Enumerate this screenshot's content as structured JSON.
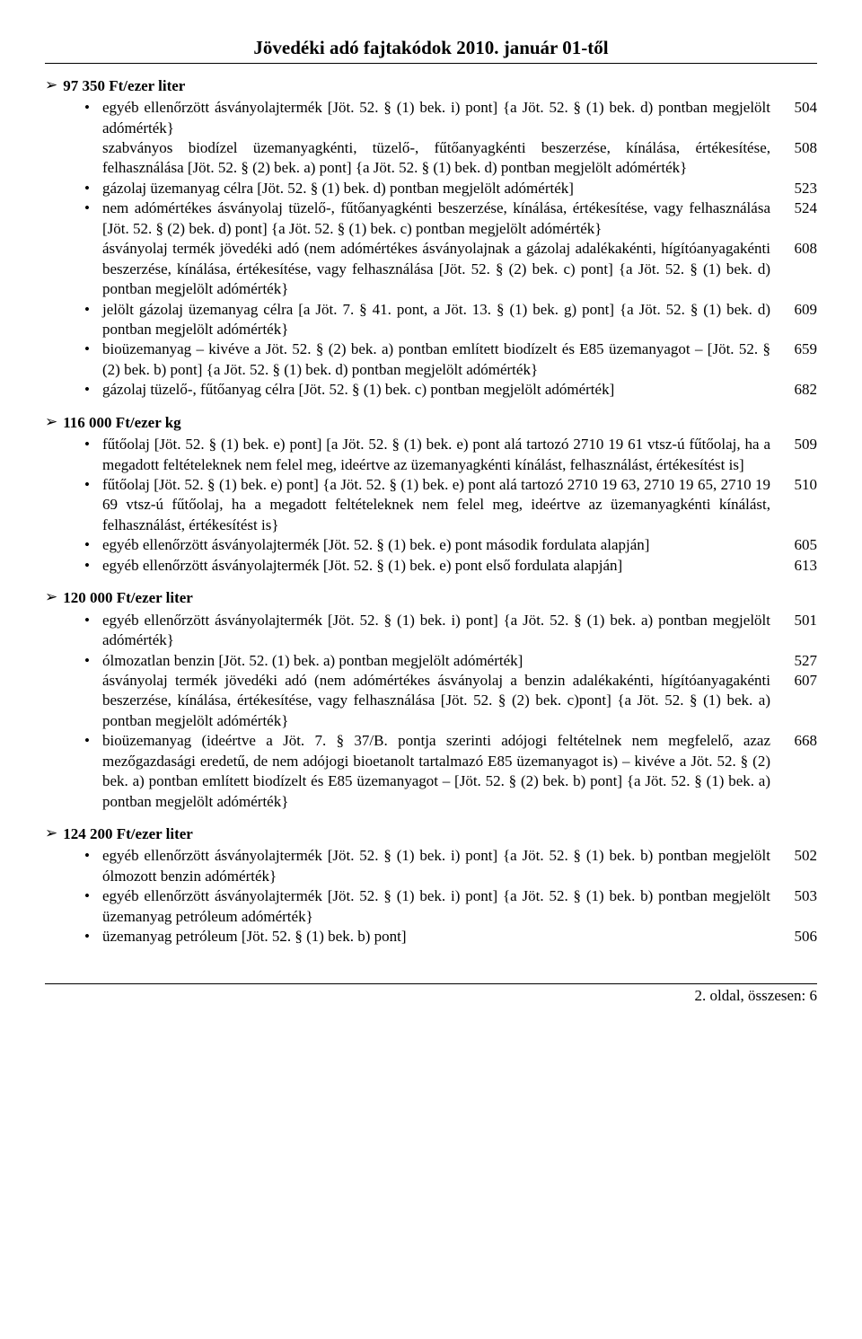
{
  "title": "Jövedéki adó fajtakódok 2010. január 01-től",
  "sections": [
    {
      "heading": "97 350 Ft/ezer liter",
      "items": [
        {
          "lines": [
            {
              "text": "egyéb ellenőrzött ásványolajtermék [Jöt. 52. § (1) bek. i) pont] {a Jöt. 52. § (1) bek. d) pontban megjelölt adómérték}",
              "code": "504"
            },
            {
              "text": "szabványos biodízel üzemanyagkénti, tüzelő-, fűtőanyagkénti beszerzése, kínálása, értékesítése, felhasználása [Jöt. 52. § (2) bek. a) pont] {a Jöt. 52. § (1) bek. d) pontban megjelölt adómérték}",
              "code": "508"
            }
          ]
        },
        {
          "lines": [
            {
              "text": "gázolaj üzemanyag célra [Jöt. 52. § (1) bek. d) pontban megjelölt adómérték]",
              "code": "523"
            }
          ]
        },
        {
          "lines": [
            {
              "text": "nem adómértékes ásványolaj tüzelő-, fűtőanyagkénti beszerzése, kínálása, értékesítése, vagy felhasználása [Jöt. 52. § (2) bek. d) pont] {a Jöt. 52. § (1) bek. c) pontban megjelölt adómérték}",
              "code": "524"
            },
            {
              "text": "ásványolaj termék jövedéki adó (nem adómértékes ásványolajnak a gázolaj adalékakénti, hígítóanyagakénti beszerzése, kínálása, értékesítése, vagy felhasználása [Jöt. 52. § (2) bek. c) pont] {a Jöt. 52. § (1) bek. d) pontban megjelölt adómérték}",
              "code": "608"
            }
          ]
        },
        {
          "lines": [
            {
              "text": "jelölt gázolaj üzemanyag célra [a Jöt. 7. § 41. pont, a Jöt. 13. § (1) bek. g) pont] {a Jöt. 52. § (1) bek. d) pontban megjelölt adómérték}",
              "code": "609"
            }
          ]
        },
        {
          "lines": [
            {
              "text": "bioüzemanyag – kivéve a Jöt. 52. § (2) bek. a) pontban említett biodízelt és E85 üzemanyagot – [Jöt. 52. § (2) bek. b) pont] {a Jöt. 52. § (1) bek. d) pontban megjelölt adómérték}",
              "code": "659"
            }
          ]
        },
        {
          "lines": [
            {
              "text": "gázolaj tüzelő-, fűtőanyag célra [Jöt. 52. § (1) bek. c) pontban megjelölt adómérték]",
              "code": "682"
            }
          ]
        }
      ]
    },
    {
      "heading": "116 000 Ft/ezer kg",
      "items": [
        {
          "lines": [
            {
              "text": "fűtőolaj [Jöt. 52. § (1) bek. e) pont] [a Jöt. 52. § (1) bek. e) pont alá tartozó 2710 19 61 vtsz-ú fűtőolaj, ha a megadott feltételeknek nem felel meg, ideértve az üzemanyagkénti kínálást, felhasználást, értékesítést is]",
              "code": "509"
            }
          ]
        },
        {
          "lines": [
            {
              "text": "fűtőolaj [Jöt. 52. § (1) bek. e) pont] {a Jöt. 52. § (1) bek. e) pont alá tartozó 2710 19 63, 2710 19 65, 2710 19 69 vtsz-ú fűtőolaj, ha a megadott feltételeknek nem felel meg, ideértve az üzemanyagkénti kínálást, felhasználást, értékesítést is}",
              "code": "510"
            }
          ]
        },
        {
          "lines": [
            {
              "text": "egyéb ellenőrzött ásványolajtermék [Jöt. 52. § (1) bek. e) pont második fordulata alapján]",
              "code": "605"
            }
          ]
        },
        {
          "lines": [
            {
              "text": "egyéb ellenőrzött ásványolajtermék [Jöt. 52. § (1) bek. e) pont első fordulata alapján]",
              "code": "613"
            }
          ]
        }
      ]
    },
    {
      "heading": "120 000 Ft/ezer liter",
      "items": [
        {
          "lines": [
            {
              "text": "egyéb ellenőrzött ásványolajtermék [Jöt. 52. § (1) bek. i) pont] {a Jöt. 52. § (1) bek. a) pontban megjelölt adómérték}",
              "code": "501"
            }
          ]
        },
        {
          "lines": [
            {
              "text": "ólmozatlan benzin [Jöt. 52. (1) bek. a) pontban megjelölt adómérték]",
              "code": "527"
            },
            {
              "text": "ásványolaj termék jövedéki adó (nem adómértékes ásványolaj a benzin adalékakénti, hígítóanyagakénti beszerzése, kínálása, értékesítése, vagy felhasználása [Jöt. 52. § (2) bek. c)pont] {a Jöt. 52. § (1) bek. a) pontban megjelölt adómérték}",
              "code": "607"
            }
          ]
        },
        {
          "lines": [
            {
              "text": "bioüzemanyag (ideértve a Jöt. 7. § 37/B. pontja szerinti adójogi feltételnek nem megfelelő, azaz mezőgazdasági eredetű, de nem adójogi bioetanolt tartalmazó E85 üzemanyagot is) – kivéve a Jöt. 52. § (2) bek. a) pontban említett biodízelt és E85 üzemanyagot – [Jöt. 52. § (2) bek. b) pont] {a Jöt. 52. § (1) bek. a) pontban megjelölt adómérték}",
              "code": "668"
            }
          ]
        }
      ]
    },
    {
      "heading": "124 200 Ft/ezer liter",
      "items": [
        {
          "lines": [
            {
              "text": "egyéb ellenőrzött ásványolajtermék [Jöt. 52. § (1) bek. i) pont] {a Jöt. 52. § (1) bek. b) pontban megjelölt ólmozott benzin adómérték}",
              "code": "502"
            }
          ]
        },
        {
          "lines": [
            {
              "text": "egyéb ellenőrzött ásványolajtermék [Jöt. 52. § (1) bek. i) pont] {a Jöt. 52. § (1) bek. b) pontban megjelölt üzemanyag petróleum adómérték}",
              "code": "503"
            }
          ]
        },
        {
          "lines": [
            {
              "text": "üzemanyag petróleum [Jöt. 52. § (1) bek. b) pont]",
              "code": "506"
            }
          ]
        }
      ]
    }
  ],
  "footer": "2. oldal, összesen: 6"
}
